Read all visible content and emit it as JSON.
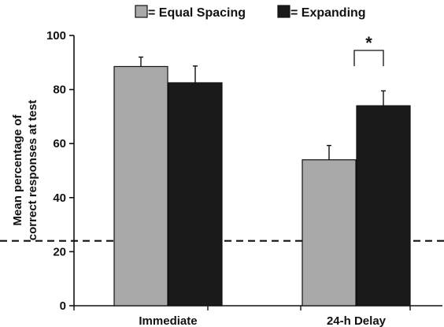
{
  "chart_data": {
    "type": "bar",
    "categories": [
      "Immediate",
      "24-h Delay"
    ],
    "series": [
      {
        "name": "= Equal Spacing",
        "values": [
          88.5,
          54
        ],
        "errors": [
          3.5,
          5.3
        ],
        "color": "#a9a9a9"
      },
      {
        "name": "= Expanding",
        "values": [
          82.5,
          74
        ],
        "errors": [
          6.2,
          5.5
        ],
        "color": "#1a1a1a"
      }
    ],
    "ylabel_lines": [
      "Mean percentage of",
      "correct responses at test"
    ],
    "ylim": [
      0,
      100
    ],
    "yticks": [
      0,
      20,
      40,
      60,
      80,
      100
    ],
    "chance_line": 24,
    "significance": {
      "category_index": 1,
      "label": "*"
    },
    "legend_position": "top-center",
    "grid": false
  }
}
